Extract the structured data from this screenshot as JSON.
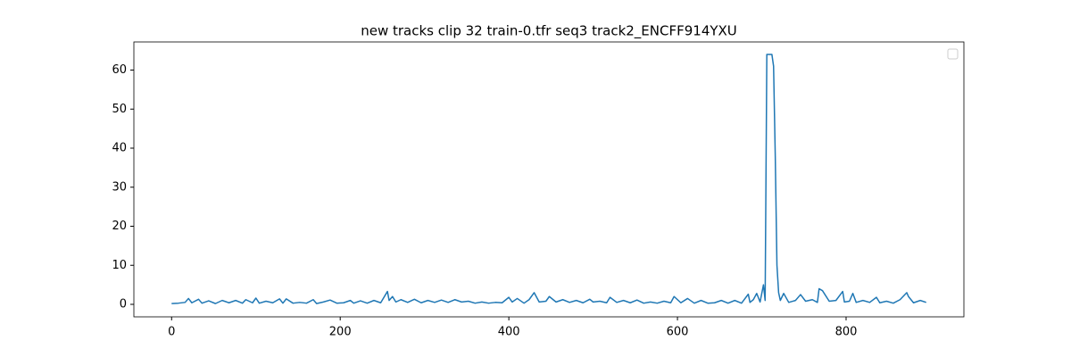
{
  "chart_data": {
    "type": "line",
    "title": "new tracks clip 32 train-0.tfr seq3 track2_ENCFF914YXU",
    "x": [
      0,
      8,
      16,
      20,
      24,
      32,
      36,
      44,
      52,
      60,
      68,
      76,
      84,
      88,
      96,
      100,
      104,
      112,
      120,
      128,
      132,
      136,
      144,
      152,
      160,
      168,
      172,
      180,
      188,
      196,
      204,
      212,
      216,
      224,
      232,
      240,
      248,
      256,
      258,
      262,
      266,
      272,
      280,
      288,
      296,
      304,
      312,
      320,
      328,
      336,
      344,
      352,
      360,
      368,
      376,
      384,
      392,
      400,
      404,
      410,
      418,
      424,
      430,
      436,
      444,
      448,
      456,
      464,
      472,
      480,
      488,
      496,
      500,
      508,
      516,
      520,
      528,
      536,
      544,
      552,
      560,
      568,
      576,
      584,
      592,
      596,
      604,
      612,
      620,
      628,
      636,
      644,
      652,
      660,
      668,
      676,
      684,
      686,
      690,
      694,
      698,
      702,
      704,
      706,
      708,
      712,
      714,
      716,
      718,
      720,
      722,
      726,
      732,
      740,
      746,
      752,
      760,
      766,
      768,
      772,
      780,
      788,
      796,
      798,
      804,
      808,
      812,
      820,
      828,
      836,
      840,
      848,
      856,
      864,
      872,
      874,
      880,
      888,
      895
    ],
    "series": [
      {
        "color": "#1f77b4",
        "values": [
          0.2,
          0.3,
          0.5,
          1.5,
          0.4,
          1.3,
          0.3,
          0.9,
          0.2,
          1.0,
          0.4,
          1.0,
          0.3,
          1.2,
          0.4,
          1.6,
          0.3,
          0.8,
          0.4,
          1.4,
          0.3,
          1.4,
          0.3,
          0.5,
          0.3,
          1.2,
          0.2,
          0.6,
          1.1,
          0.3,
          0.4,
          1.0,
          0.3,
          0.9,
          0.3,
          1.0,
          0.4,
          3.3,
          1.0,
          2.0,
          0.6,
          1.2,
          0.5,
          1.3,
          0.4,
          1.0,
          0.5,
          1.1,
          0.5,
          1.2,
          0.6,
          0.8,
          0.3,
          0.6,
          0.3,
          0.5,
          0.4,
          1.8,
          0.6,
          1.5,
          0.3,
          1.2,
          3.0,
          0.6,
          0.8,
          2.0,
          0.6,
          1.2,
          0.5,
          1.0,
          0.4,
          1.3,
          0.6,
          0.8,
          0.4,
          1.8,
          0.5,
          1.0,
          0.4,
          1.1,
          0.3,
          0.6,
          0.3,
          0.8,
          0.4,
          2.0,
          0.4,
          1.5,
          0.3,
          1.0,
          0.3,
          0.4,
          1.0,
          0.3,
          1.0,
          0.3,
          2.6,
          0.5,
          1.2,
          2.8,
          0.6,
          5.0,
          1.0,
          64,
          64,
          64,
          61,
          38,
          10,
          3.0,
          1.0,
          2.8,
          0.5,
          1.0,
          2.5,
          0.8,
          1.2,
          0.5,
          4.0,
          3.5,
          0.8,
          1.0,
          3.3,
          0.6,
          0.8,
          2.8,
          0.5,
          1.0,
          0.5,
          1.8,
          0.4,
          0.8,
          0.3,
          1.2,
          3.0,
          2.0,
          0.4,
          1.0,
          0.5
        ]
      }
    ],
    "xlim": [
      -44.75,
      939.75
    ],
    "xticks": [
      0,
      200,
      400,
      600,
      800
    ],
    "ylim": [
      -3.2,
      67.2
    ],
    "yticks": [
      0,
      10,
      20,
      30,
      40,
      50,
      60
    ],
    "grid": false
  }
}
